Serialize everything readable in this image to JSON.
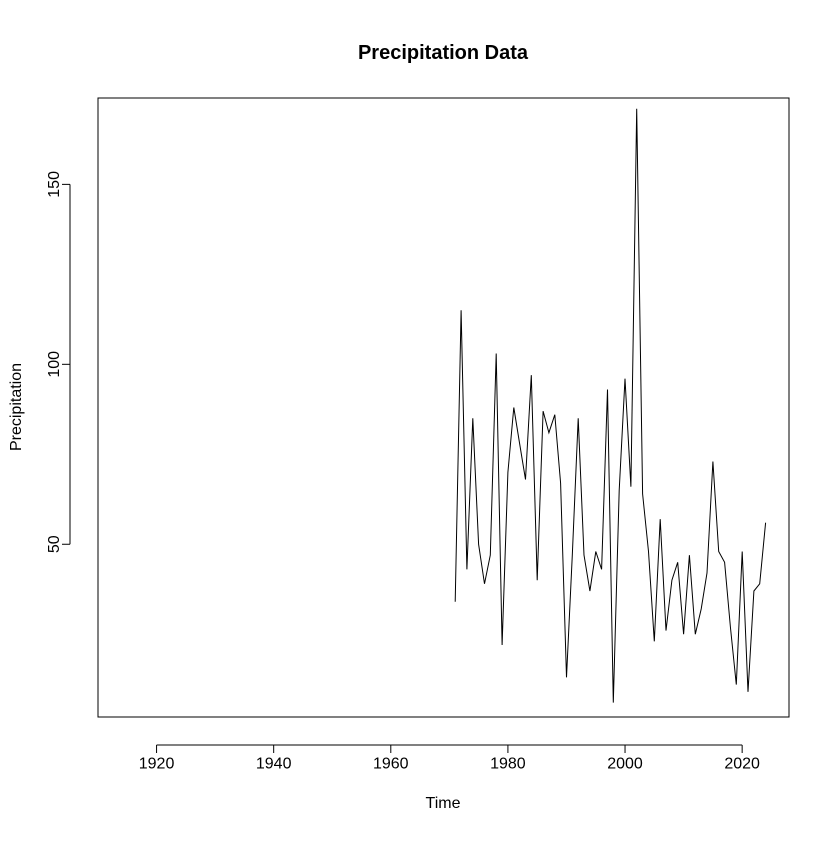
{
  "chart_data": {
    "type": "line",
    "title": "Precipitation Data",
    "xlabel": "Time",
    "ylabel": "Precipitation",
    "xlim": [
      1910,
      2028
    ],
    "ylim": [
      2,
      174
    ],
    "x_ticks": [
      1920,
      1940,
      1960,
      1980,
      2000,
      2020
    ],
    "y_ticks": [
      50,
      100,
      150
    ],
    "grid": false,
    "line_color": "#000000",
    "series": [
      {
        "x": [
          1971,
          1972,
          1973,
          1974,
          1975,
          1976,
          1977,
          1978,
          1979,
          1980,
          1981,
          1982,
          1983,
          1984,
          1985,
          1986,
          1987,
          1988,
          1989,
          1990,
          1991,
          1992,
          1993,
          1994,
          1995,
          1996,
          1997,
          1998,
          1999,
          2000,
          2001,
          2002,
          2003,
          2004,
          2005,
          2006,
          2007,
          2008,
          2009,
          2010,
          2011,
          2012,
          2013,
          2014,
          2015,
          2016,
          2017,
          2018,
          2019,
          2020,
          2021,
          2022,
          2023,
          2024
        ],
        "y": [
          34,
          115,
          43,
          85,
          50,
          39,
          47,
          103,
          22,
          70,
          88,
          78,
          68,
          97,
          40,
          87,
          81,
          86,
          67,
          13,
          47,
          85,
          47,
          37,
          48,
          43,
          93,
          6,
          65,
          96,
          66,
          171,
          64,
          48,
          23,
          57,
          26,
          40,
          45,
          25,
          47,
          25,
          32,
          42,
          73,
          48,
          45,
          27,
          11,
          48,
          9,
          37,
          39,
          56
        ]
      }
    ]
  }
}
